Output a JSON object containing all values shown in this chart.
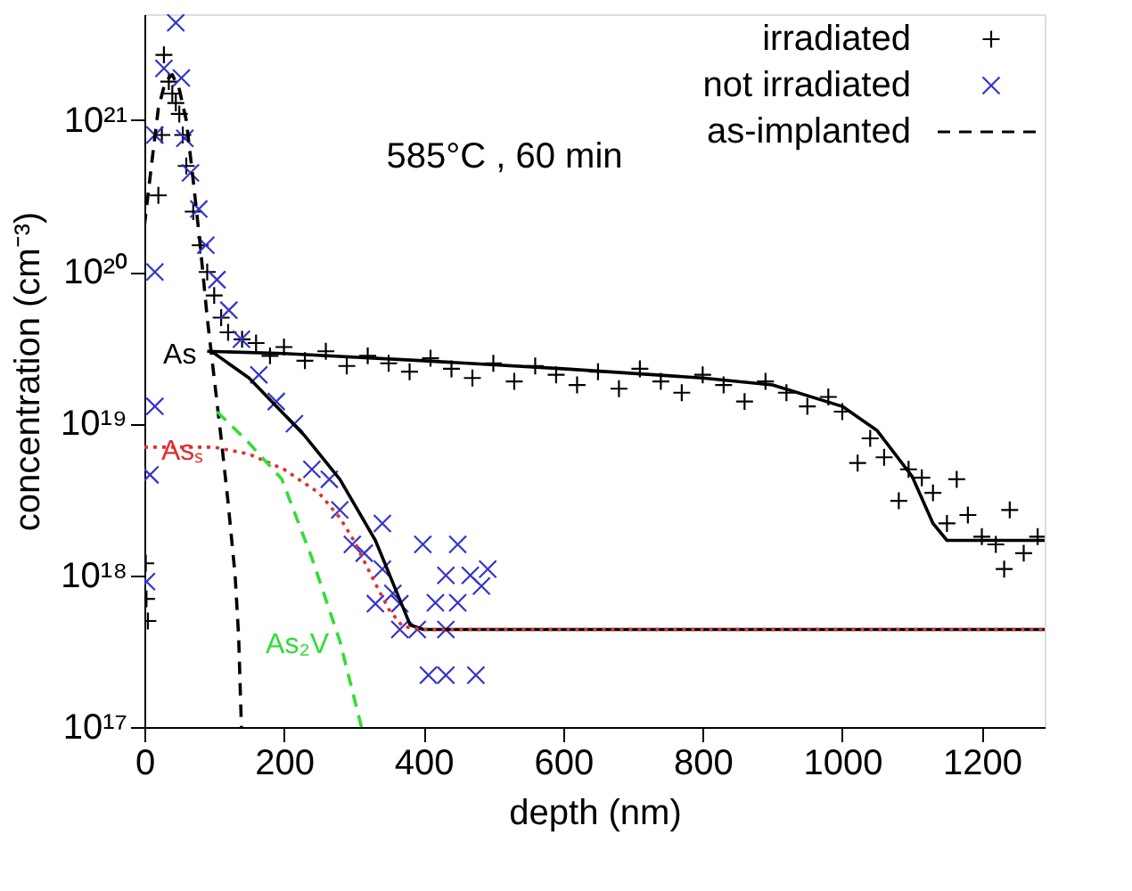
{
  "chart_data": {
    "type": "scatter",
    "xlabel": "depth (nm)",
    "ylabel": "concentration (cm⁻³)",
    "xlim": [
      0,
      1290
    ],
    "xticks": [
      0,
      200,
      400,
      600,
      800,
      {
        "value": 1000,
        "label": "1000"
      },
      {
        "value": 1200,
        "label": "1200"
      }
    ],
    "ylim": [
      1e+17,
      5e+21
    ],
    "log": true,
    "yticks": [
      {
        "value": 1e+17,
        "label": "10¹⁷"
      },
      {
        "value": 1e+18,
        "label": "10¹⁸"
      },
      {
        "value": 1e+19,
        "label": "10¹⁹"
      },
      {
        "value": 1e+20,
        "label": "10²⁰"
      },
      {
        "value": 1e+21,
        "label": "10²¹"
      }
    ],
    "grid": false,
    "legend": "top right",
    "annotations": [
      "585°C , 60 min",
      {
        "text": "As",
        "x": 90,
        "y": 3e+19
      },
      {
        "text": "Asₛ",
        "x": 100,
        "y": 7e+18
      },
      {
        "text": "As₂V",
        "x": 280,
        "y": 3.7e+17
      }
    ],
    "series": [
      {
        "name": "irradiated",
        "marker": "cross",
        "color": "#000000",
        "x": [
          2,
          3,
          5,
          20,
          25,
          28,
          35,
          40,
          45,
          50,
          55,
          60,
          70,
          80,
          90,
          100,
          110,
          120,
          140,
          160,
          180,
          200,
          230,
          260,
          290,
          320,
          350,
          380,
          410,
          440,
          470,
          500,
          530,
          560,
          590,
          620,
          650,
          680,
          710,
          740,
          770,
          800,
          830,
          860,
          890,
          920,
          950,
          980,
          1000,
          1022,
          1040,
          1060,
          1081,
          1095,
          1114,
          1130,
          1150,
          1164,
          1180,
          1200,
          1220,
          1232,
          1240,
          1260,
          1280
        ],
        "values": [
          1.2e+18,
          7e+17,
          5e+17,
          3.2e+20,
          8e+20,
          2.7e+21,
          1.8e+21,
          1.5e+21,
          1.3e+21,
          1.1e+21,
          8e+20,
          5e+20,
          2.5e+20,
          1.5e+20,
          1e+20,
          7e+19,
          5e+19,
          4e+19,
          3.6e+19,
          3.4e+19,
          2.8e+19,
          3.2e+19,
          2.6e+19,
          3e+19,
          2.4e+19,
          2.8e+19,
          2.5e+19,
          2.2e+19,
          2.7e+19,
          2.3e+19,
          2e+19,
          2.5e+19,
          1.9e+19,
          2.4e+19,
          2.1e+19,
          1.8e+19,
          2.2e+19,
          1.7e+19,
          2.3e+19,
          1.9e+19,
          1.6e+19,
          2.1e+19,
          1.8e+19,
          1.4e+19,
          1.9e+19,
          1.6e+19,
          1.3e+19,
          1.5e+19,
          1.2e+19,
          5.5e+18,
          8e+18,
          6e+18,
          3.1e+18,
          5e+18,
          4.4e+18,
          3.5e+18,
          2.2e+18,
          4.3e+18,
          2.5e+18,
          1.8e+18,
          1.6e+18,
          1.1e+18,
          2.7e+18,
          1.4e+18,
          1.8e+18
        ]
      },
      {
        "name": "not irradiated",
        "marker": "x",
        "color": "#3333cc",
        "x": [
          3,
          8,
          15,
          15,
          15,
          28,
          45,
          53,
          58,
          66,
          78,
          88,
          104,
          121,
          139,
          164,
          189,
          215,
          240,
          265,
          280,
          298,
          315,
          331,
          341,
          341,
          356,
          366,
          366,
          391,
          399,
          407,
          417,
          432,
          432,
          432,
          449,
          449,
          467,
          475,
          483,
          492
        ],
        "values": [
          9.1e+17,
          4.6e+18,
          1.3e+19,
          1e+20,
          8e+20,
          2.2e+21,
          4.4e+21,
          1.9e+21,
          7.6e+20,
          4.5e+20,
          2.6e+20,
          1.5e+20,
          8.9e+19,
          5.6e+19,
          3.6e+19,
          2.1e+19,
          1.4e+19,
          1e+19,
          5e+18,
          4.3e+18,
          2.7e+18,
          1.6e+18,
          1.4e+18,
          6.5e+17,
          2.2e+18,
          1.1e+18,
          7.6e+17,
          6.5e+17,
          4.4e+17,
          4.4e+17,
          1.6e+18,
          2.2e+17,
          6.6e+17,
          1e+18,
          4.4e+17,
          2.2e+17,
          1.6e+18,
          6.6e+17,
          1e+18,
          2.2e+17,
          8.5e+17,
          1.1e+18
        ]
      },
      {
        "name": "as-implanted",
        "type": "line",
        "line_style": "dashed",
        "color": "#000000",
        "x": [
          0,
          10,
          20,
          30,
          40,
          50,
          60,
          70,
          80,
          90,
          100,
          110,
          120,
          130,
          135,
          139
        ],
        "values": [
          2e+20,
          5e+20,
          1.2e+21,
          1.8e+21,
          2e+21,
          1.6e+21,
          1e+21,
          4e+20,
          1.5e+20,
          5e+19,
          2e+19,
          8e+18,
          3e+18,
          1e+18,
          4e+17,
          1e+17
        ]
      },
      {
        "type": "line",
        "line_style": "solid",
        "color": "#000000",
        "x": [
          90,
          200,
          400,
          600,
          800,
          900,
          1000,
          1050,
          1100,
          1130,
          1150,
          1200,
          1290
        ],
        "values": [
          3e+19,
          2.9e+19,
          2.6e+19,
          2.3e+19,
          2e+19,
          1.8e+19,
          1.3e+19,
          9e+18,
          4.5e+18,
          2.2e+18,
          1.7e+18,
          1.7e+18,
          1.7e+18
        ]
      },
      {
        "type": "line",
        "line_style": "solid",
        "color": "#000000",
        "x": [
          96,
          150,
          230,
          280,
          331,
          366,
          381,
          400,
          1290
        ],
        "values": [
          3e+19,
          2e+19,
          8.3e+18,
          4.3e+18,
          1.7e+18,
          6.9e+17,
          4.7e+17,
          4.4e+17,
          4.4e+17
        ]
      },
      {
        "type": "line",
        "line_style": "dotted",
        "color": "#e03030",
        "x": [
          0,
          100,
          150,
          200,
          250,
          280,
          300,
          330,
          350,
          370,
          400,
          1290
        ],
        "values": [
          7e+18,
          7e+18,
          6.3e+18,
          5e+18,
          3.5e+18,
          2.4e+18,
          1.7e+18,
          9e+17,
          6e+17,
          4.6e+17,
          4.4e+17,
          4.4e+17
        ]
      },
      {
        "type": "line",
        "line_style": "dashed",
        "color": "#33dd33",
        "x": [
          104,
          146,
          197,
          240,
          280,
          311
        ],
        "values": [
          1.2e+19,
          7.8e+18,
          4.3e+18,
          1.3e+18,
          3.7e+17,
          1e+17
        ]
      }
    ]
  }
}
